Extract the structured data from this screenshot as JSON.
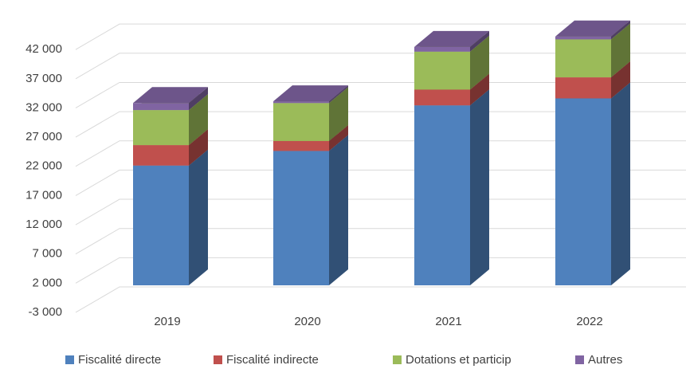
{
  "chart_data": {
    "type": "bar3d-stacked",
    "categories": [
      "2019",
      "2020",
      "2021",
      "2022"
    ],
    "series": [
      {
        "name": "Fiscalité directe",
        "color": "#4f81bd",
        "values": [
          20500,
          23000,
          30800,
          32000
        ]
      },
      {
        "name": "Fiscalité indirecte",
        "color": "#c0504d",
        "values": [
          3500,
          1700,
          2700,
          3600
        ]
      },
      {
        "name": "Dotations et particip",
        "color": "#9bbb59",
        "values": [
          6000,
          6500,
          6500,
          6500
        ]
      },
      {
        "name": "Autres",
        "color": "#8064a2",
        "values": [
          1200,
          300,
          800,
          500
        ]
      }
    ],
    "ylim": [
      -3000,
      42000
    ],
    "yticks": [
      {
        "value": -3000,
        "label": "-3 000"
      },
      {
        "value": 2000,
        "label": "2 000"
      },
      {
        "value": 7000,
        "label": "7 000"
      },
      {
        "value": 12000,
        "label": "12 000"
      },
      {
        "value": 17000,
        "label": "17 000"
      },
      {
        "value": 22000,
        "label": "22 000"
      },
      {
        "value": 27000,
        "label": "27 000"
      },
      {
        "value": 32000,
        "label": "32 000"
      },
      {
        "value": 37000,
        "label": "37 000"
      },
      {
        "value": 42000,
        "label": "42 000"
      }
    ],
    "grid": true,
    "legend": "bottom"
  }
}
